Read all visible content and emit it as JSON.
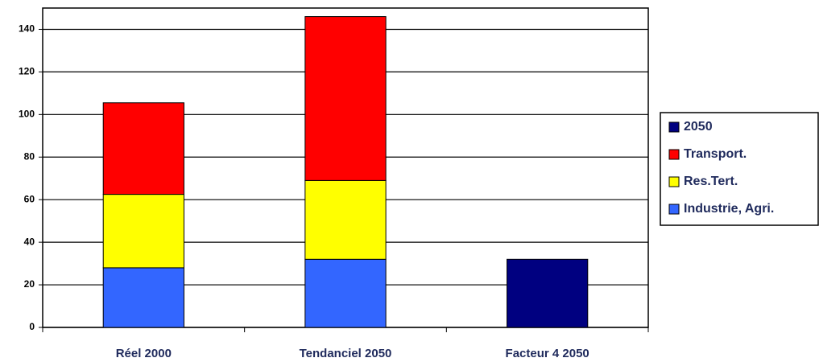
{
  "chart_data": {
    "type": "stacked_bar",
    "categories": [
      "Réel 2000",
      "Tendanciel 2050",
      "Facteur 4 2050"
    ],
    "series": [
      {
        "name": "Industrie, Agri.",
        "color": "#3366ff",
        "values": [
          28,
          32,
          null
        ]
      },
      {
        "name": "Res.Tert.",
        "color": "#ffff00",
        "values": [
          34.5,
          37,
          null
        ]
      },
      {
        "name": "Transport.",
        "color": "#ff0000",
        "values": [
          43,
          77,
          null
        ]
      },
      {
        "name": "2050",
        "color": "#000080",
        "values": [
          null,
          null,
          32
        ]
      }
    ],
    "ylim": [
      0,
      150
    ],
    "yticks": [
      0,
      20,
      40,
      60,
      80,
      100,
      120,
      140
    ],
    "grid": true,
    "legend": "right"
  }
}
